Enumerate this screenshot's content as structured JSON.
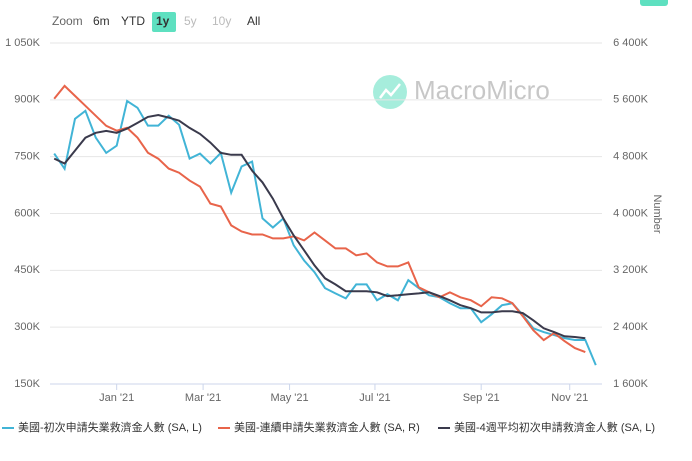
{
  "chart_data": {
    "type": "line",
    "zoom": {
      "label": "Zoom",
      "buttons": [
        "6m",
        "YTD",
        "1y",
        "5y",
        "10y",
        "All"
      ],
      "selected": "1y",
      "disabled": [
        "5y",
        "10y"
      ]
    },
    "watermark": "MacroMicro",
    "y2_label": "Number",
    "x": [
      -6,
      -5,
      -4,
      -3,
      -2,
      -1,
      0,
      1,
      2,
      3,
      4,
      5,
      6,
      7,
      8,
      9,
      10,
      11,
      12,
      13,
      14,
      15,
      16,
      17,
      18,
      19,
      20,
      21,
      22,
      23,
      24,
      25,
      26,
      27,
      28,
      29,
      30,
      31,
      32,
      33,
      34,
      35,
      36,
      37,
      38,
      39,
      40,
      41,
      42,
      43,
      44,
      45,
      46
    ],
    "xlim": [
      -6.4,
      46.6
    ],
    "xticks": [
      {
        "value": 0,
        "label": "Jan '21"
      },
      {
        "value": 8.3,
        "label": "Mar '21"
      },
      {
        "value": 16.6,
        "label": "May '21"
      },
      {
        "value": 24.8,
        "label": "Jul '21"
      },
      {
        "value": 35,
        "label": "Sep '21"
      },
      {
        "value": 43.5,
        "label": "Nov '21"
      }
    ],
    "ylim": [
      150,
      1050
    ],
    "yticks": [
      {
        "value": 150,
        "label": "150K"
      },
      {
        "value": 300,
        "label": "300K"
      },
      {
        "value": 450,
        "label": "450K"
      },
      {
        "value": 600,
        "label": "600K"
      },
      {
        "value": 750,
        "label": "750K"
      },
      {
        "value": 900,
        "label": "900K"
      },
      {
        "value": 1050,
        "label": "1 050K"
      }
    ],
    "y2lim": [
      1600,
      6400
    ],
    "y2ticks": [
      {
        "value": 1600,
        "label": "1 600K"
      },
      {
        "value": 2400,
        "label": "2 400K"
      },
      {
        "value": 3200,
        "label": "3 200K"
      },
      {
        "value": 4000,
        "label": "4 000K"
      },
      {
        "value": 4800,
        "label": "4 800K"
      },
      {
        "value": 5600,
        "label": "5 600K"
      },
      {
        "value": 6400,
        "label": "6 400K"
      }
    ],
    "grid": true,
    "series": [
      {
        "name": "美國-初次申請失業救濟金人數 (SA, L)",
        "color": "#41b4d6",
        "axis": "y",
        "values": [
          758,
          718,
          850,
          871,
          800,
          760,
          779,
          897,
          879,
          832,
          832,
          858,
          834,
          745,
          758,
          732,
          760,
          655,
          724,
          737,
          587,
          563,
          587,
          516,
          476,
          445,
          403,
          389,
          376,
          413,
          413,
          371,
          387,
          371,
          424,
          403,
          384,
          379,
          363,
          350,
          350,
          313,
          334,
          358,
          363,
          332,
          297,
          287,
          279,
          271,
          266,
          266,
          200
        ]
      },
      {
        "name": "美國-連續申請失業救濟金人數 (SA, R)",
        "color": "#e8644a",
        "axis": "y2",
        "values": [
          5614,
          5796,
          5656,
          5516,
          5375,
          5235,
          5165,
          5207,
          5067,
          4856,
          4772,
          4632,
          4575,
          4463,
          4379,
          4140,
          4098,
          3832,
          3747,
          3705,
          3705,
          3649,
          3649,
          3677,
          3621,
          3733,
          3621,
          3509,
          3509,
          3411,
          3439,
          3312,
          3256,
          3256,
          3312,
          2961,
          2891,
          2821,
          2891,
          2821,
          2779,
          2695,
          2821,
          2807,
          2737,
          2554,
          2358,
          2218,
          2316,
          2204,
          2105,
          2049,
          null
        ]
      },
      {
        "name": "美國-4週平均初次申請救濟金人數 (SA, L)",
        "color": "#3a3a4c",
        "axis": "y",
        "values": [
          745,
          732,
          766,
          800,
          813,
          818,
          813,
          824,
          839,
          855,
          860,
          853,
          845,
          826,
          810,
          787,
          760,
          755,
          755,
          713,
          682,
          639,
          587,
          542,
          503,
          463,
          429,
          413,
          395,
          395,
          395,
          392,
          382,
          384,
          387,
          389,
          392,
          382,
          371,
          358,
          350,
          339,
          339,
          342,
          342,
          337,
          318,
          297,
          287,
          276,
          274,
          271,
          null
        ]
      }
    ]
  }
}
